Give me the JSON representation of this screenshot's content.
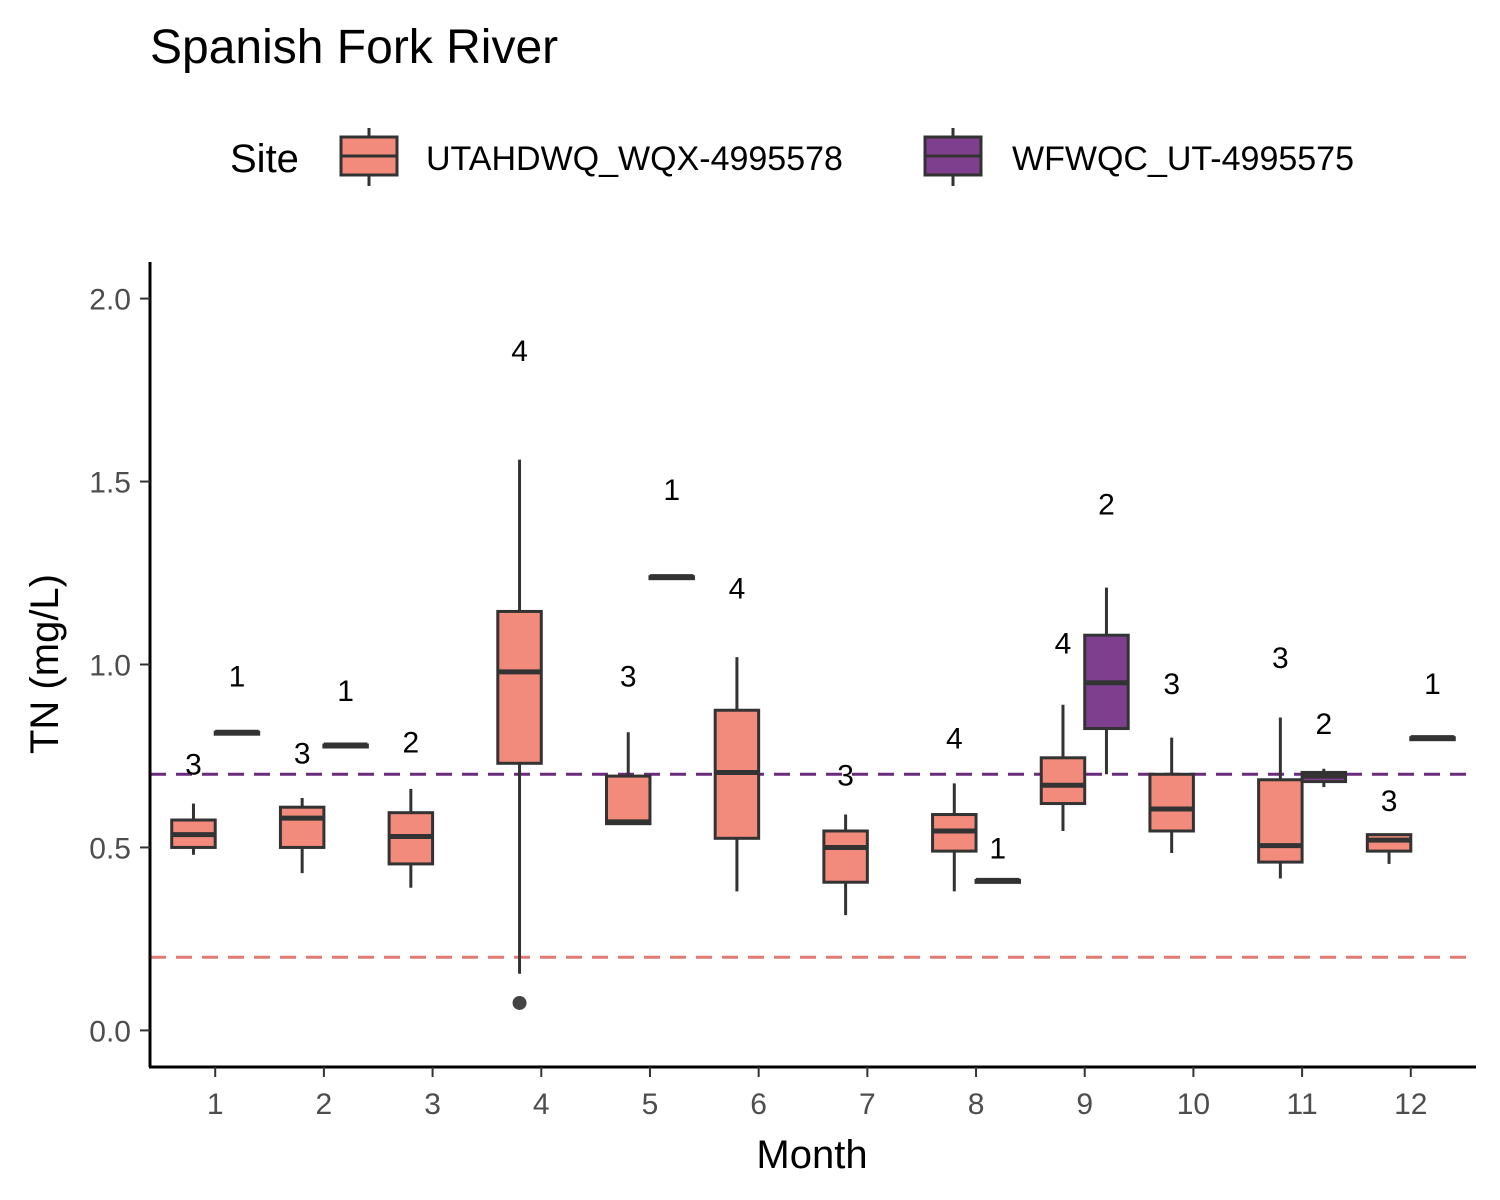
{
  "chart_data": {
    "type": "box",
    "title": "Spanish Fork River",
    "xlabel": "Month",
    "ylabel": "TN (mg/L)",
    "ylim": [
      -0.1,
      2.1
    ],
    "yticks": [
      0.0,
      0.5,
      1.0,
      1.5,
      2.0
    ],
    "ytick_labels": [
      "0.0",
      "0.5",
      "1.0",
      "1.5",
      "2.0"
    ],
    "categories": [
      "1",
      "2",
      "3",
      "4",
      "5",
      "6",
      "7",
      "8",
      "9",
      "10",
      "11",
      "12"
    ],
    "grid": false,
    "legend": {
      "title": "Site",
      "position": "top",
      "entries": [
        "UTAHDWQ_WQX-4995578",
        "WFWQC_UT-4995575"
      ]
    },
    "series": [
      {
        "name": "UTAHDWQ_WQX-4995578",
        "color": "#f28b7b",
        "boxes": [
          {
            "x": "1",
            "min": 0.48,
            "q1": 0.5,
            "median": 0.535,
            "q3": 0.575,
            "max": 0.62,
            "n": 3,
            "label_y": 0.73
          },
          {
            "x": "2",
            "min": 0.43,
            "q1": 0.5,
            "median": 0.58,
            "q3": 0.61,
            "max": 0.635,
            "n": 3,
            "label_y": 0.76
          },
          {
            "x": "3",
            "min": 0.39,
            "q1": 0.455,
            "median": 0.53,
            "q3": 0.595,
            "max": 0.66,
            "n": 2,
            "label_y": 0.79
          },
          {
            "x": "4",
            "min": 0.155,
            "q1": 0.73,
            "median": 0.98,
            "q3": 1.145,
            "max": 1.56,
            "outliers": [
              0.075
            ],
            "n": 4,
            "label_y": 1.86
          },
          {
            "x": "5",
            "min": 0.565,
            "q1": 0.565,
            "median": 0.57,
            "q3": 0.695,
            "max": 0.815,
            "n": 3,
            "label_y": 0.97
          },
          {
            "x": "6",
            "min": 0.38,
            "q1": 0.525,
            "median": 0.705,
            "q3": 0.875,
            "max": 1.02,
            "n": 4,
            "label_y": 1.21
          },
          {
            "x": "7",
            "min": 0.315,
            "q1": 0.405,
            "median": 0.5,
            "q3": 0.545,
            "max": 0.59,
            "n": 3,
            "label_y": 0.7
          },
          {
            "x": "8",
            "min": 0.38,
            "q1": 0.49,
            "median": 0.545,
            "q3": 0.59,
            "max": 0.675,
            "n": 4,
            "label_y": 0.8
          },
          {
            "x": "9",
            "min": 0.545,
            "q1": 0.62,
            "median": 0.67,
            "q3": 0.745,
            "max": 0.89,
            "n": 4,
            "label_y": 1.06
          },
          {
            "x": "10",
            "min": 0.485,
            "q1": 0.545,
            "median": 0.605,
            "q3": 0.7,
            "max": 0.8,
            "n": 3,
            "label_y": 0.95
          },
          {
            "x": "11",
            "min": 0.415,
            "q1": 0.46,
            "median": 0.505,
            "q3": 0.685,
            "max": 0.855,
            "n": 3,
            "label_y": 1.02
          },
          {
            "x": "12",
            "min": 0.455,
            "q1": 0.49,
            "median": 0.52,
            "q3": 0.535,
            "max": 0.535,
            "n": 3,
            "label_y": 0.63
          }
        ]
      },
      {
        "name": "WFWQC_UT-4995575",
        "color": "#7e3f8f",
        "boxes": [
          {
            "x": "1",
            "min": 0.815,
            "q1": 0.815,
            "median": 0.815,
            "q3": 0.815,
            "max": 0.815,
            "n": 1,
            "label_y": 0.97
          },
          {
            "x": "2",
            "min": 0.78,
            "q1": 0.78,
            "median": 0.78,
            "q3": 0.78,
            "max": 0.78,
            "n": 1,
            "label_y": 0.93
          },
          {
            "x": "5",
            "min": 1.24,
            "q1": 1.24,
            "median": 1.24,
            "q3": 1.24,
            "max": 1.24,
            "n": 1,
            "label_y": 1.48
          },
          {
            "x": "8",
            "min": 0.41,
            "q1": 0.41,
            "median": 0.41,
            "q3": 0.41,
            "max": 0.41,
            "n": 1,
            "label_y": 0.5
          },
          {
            "x": "9",
            "min": 0.7,
            "q1": 0.825,
            "median": 0.95,
            "q3": 1.08,
            "max": 1.21,
            "n": 2,
            "label_y": 1.44
          },
          {
            "x": "11",
            "min": 0.665,
            "q1": 0.68,
            "median": 0.695,
            "q3": 0.705,
            "max": 0.715,
            "n": 2,
            "label_y": 0.84
          },
          {
            "x": "12",
            "min": 0.8,
            "q1": 0.8,
            "median": 0.8,
            "q3": 0.8,
            "max": 0.8,
            "n": 1,
            "label_y": 0.95
          }
        ]
      }
    ],
    "reference_lines": [
      {
        "y": 0.7,
        "color": "#6a2c7a",
        "style": "dashed"
      },
      {
        "y": 0.2,
        "color": "#e07a73",
        "style": "dashed"
      }
    ]
  }
}
